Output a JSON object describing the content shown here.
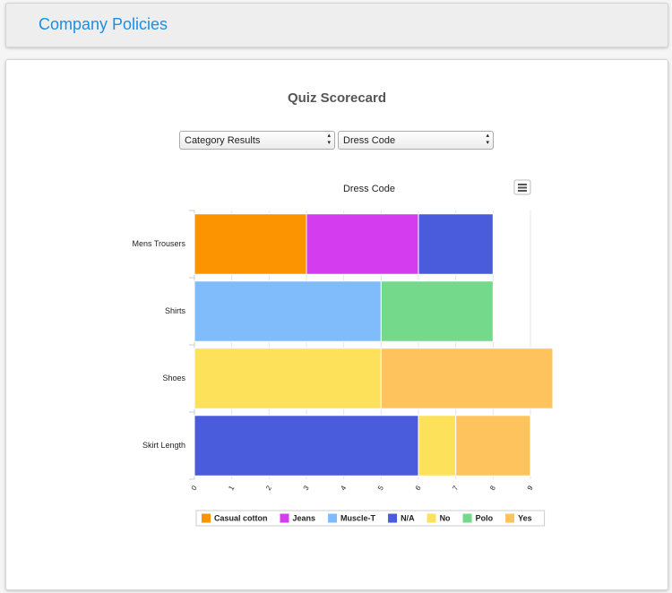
{
  "header": {
    "title": "Company Policies"
  },
  "card": {
    "title": "Quiz Scorecard",
    "selects": [
      "Category Results",
      "Dress Code"
    ]
  },
  "chart_data": {
    "type": "stacked-bar-horizontal",
    "title": "Dress Code",
    "categories": [
      "Mens Trousers",
      "Shirts",
      "Shoes",
      "Skirt Length"
    ],
    "series": [
      {
        "name": "Casual cotton",
        "color": "#fb9400",
        "values": [
          3,
          null,
          null,
          null
        ]
      },
      {
        "name": "Jeans",
        "color": "#d43cf0",
        "values": [
          3,
          null,
          null,
          null
        ]
      },
      {
        "name": "Muscle-T",
        "color": "#80bcfb",
        "values": [
          null,
          5,
          null,
          null
        ]
      },
      {
        "name": "N/A",
        "color": "#4a5cdb",
        "values": [
          2,
          null,
          null,
          6
        ]
      },
      {
        "name": "No",
        "color": "#fde15a",
        "values": [
          null,
          null,
          5,
          1
        ]
      },
      {
        "name": "Polo",
        "color": "#74d98a",
        "values": [
          null,
          3,
          null,
          null
        ]
      },
      {
        "name": "Yes",
        "color": "#ffc35e",
        "values": [
          null,
          null,
          4.6,
          2
        ]
      }
    ],
    "xlim": [
      0,
      9.6
    ],
    "xticks": [
      0,
      1,
      2,
      3,
      4,
      5,
      6,
      7,
      8,
      9
    ],
    "grid": true
  }
}
